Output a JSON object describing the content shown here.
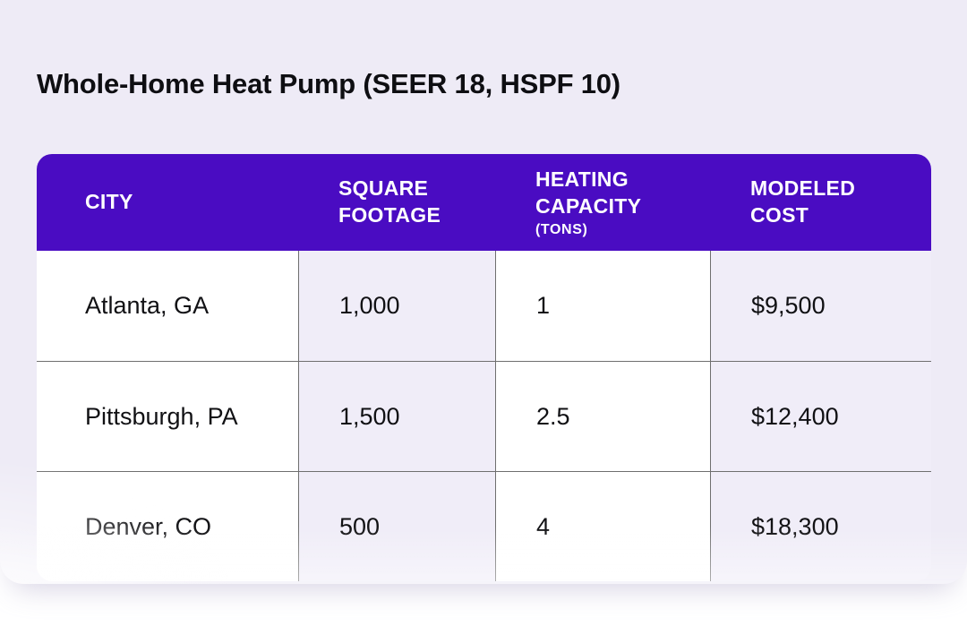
{
  "colors": {
    "header_purple": "#4A0CC2",
    "panel_lavender": "#EEEBF6",
    "cell_alt_lavender": "#F0EDF8",
    "cell_white": "#FFFFFF",
    "border_gray": "#6F6F6F",
    "header_text": "#FFFFFF",
    "body_text": "#111114"
  },
  "page": {
    "title": "Whole-Home Heat Pump (SEER 18, HSPF 10)"
  },
  "table": {
    "columns": [
      {
        "label": "CITY",
        "sublabel": ""
      },
      {
        "label": "SQUARE FOOTAGE",
        "sublabel": ""
      },
      {
        "label": "HEATING CAPACITY",
        "sublabel": "(TONS)"
      },
      {
        "label": "MODELED COST",
        "sublabel": ""
      }
    ],
    "rows": [
      {
        "city": "Atlanta, GA",
        "square_footage": "1,000",
        "heating_capacity_tons": "1",
        "modeled_cost": "$9,500"
      },
      {
        "city": "Pittsburgh, PA",
        "square_footage": "1,500",
        "heating_capacity_tons": "2.5",
        "modeled_cost": "$12,400"
      },
      {
        "city": "Denver, CO",
        "square_footage": "500",
        "heating_capacity_tons": "4",
        "modeled_cost": "$18,300"
      }
    ]
  },
  "chart_data": {
    "type": "table",
    "title": "Whole-Home Heat Pump (SEER 18, HSPF 10)",
    "columns": [
      "CITY",
      "SQUARE FOOTAGE",
      "HEATING CAPACITY (TONS)",
      "MODELED COST"
    ],
    "rows": [
      [
        "Atlanta, GA",
        "1,000",
        "1",
        "$9,500"
      ],
      [
        "Pittsburgh, PA",
        "1,500",
        "2.5",
        "$12,400"
      ],
      [
        "Denver, CO",
        "500",
        "4",
        "$18,300"
      ]
    ],
    "numeric": {
      "square_footage": [
        1000,
        1500,
        500
      ],
      "heating_capacity_tons": [
        1,
        2.5,
        4
      ],
      "modeled_cost_usd": [
        9500,
        12400,
        18300
      ]
    }
  }
}
